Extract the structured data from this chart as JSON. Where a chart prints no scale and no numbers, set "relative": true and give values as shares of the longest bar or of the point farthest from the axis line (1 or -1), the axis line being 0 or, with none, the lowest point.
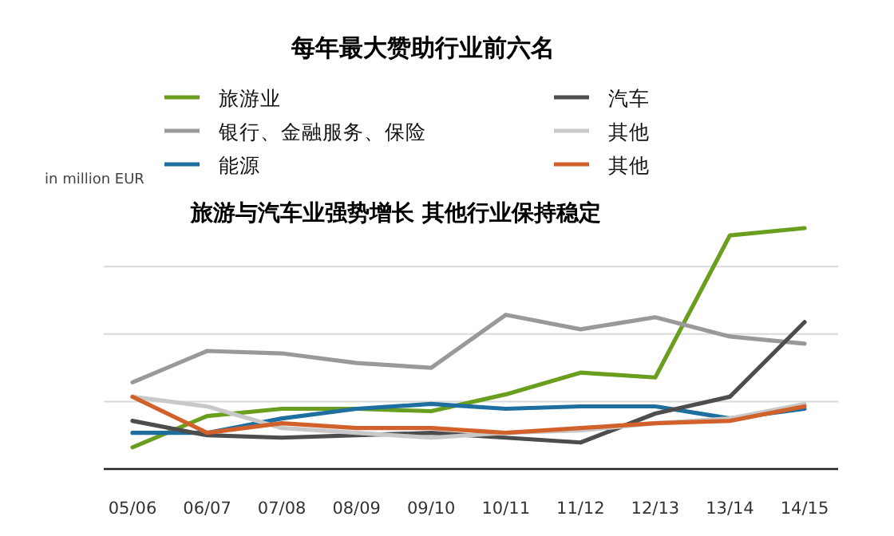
{
  "chart_data": {
    "type": "line",
    "title": "每年最大赞助行业前六名",
    "subtitle": "旅游与汽车业强势增长 其他行业保持稳定",
    "ylabel": "in million EUR",
    "relative": true,
    "grid": true,
    "legend": "top",
    "categories": [
      "05/06",
      "06/07",
      "07/08",
      "08/09",
      "09/10",
      "10/11",
      "11/12",
      "12/13",
      "13/14",
      "14/15"
    ],
    "series": [
      {
        "name": "旅游业",
        "color": "#6a9e1f",
        "values": [
          0.09,
          0.22,
          0.25,
          0.25,
          0.24,
          0.31,
          0.4,
          0.38,
          0.97,
          1
        ]
      },
      {
        "name": "银行、金融服务、保险",
        "color": "#999999",
        "values": [
          0.36,
          0.49,
          0.48,
          0.44,
          0.42,
          0.64,
          0.58,
          0.63,
          0.55,
          0.52
        ]
      },
      {
        "name": "能源",
        "color": "#1f6ea0",
        "values": [
          0.15,
          0.15,
          0.21,
          0.25,
          0.27,
          0.25,
          0.26,
          0.26,
          0.21,
          0.25
        ]
      },
      {
        "name": "汽车",
        "color": "#4d4d4d",
        "values": [
          0.2,
          0.14,
          0.13,
          0.14,
          0.15,
          0.13,
          0.11,
          0.23,
          0.3,
          0.61
        ]
      },
      {
        "name": "其他",
        "color": "#c8c8c8",
        "values": [
          0.3,
          0.26,
          0.17,
          0.15,
          0.13,
          0.15,
          0.16,
          0.19,
          0.21,
          0.27
        ]
      },
      {
        "name": "其他",
        "color": "#d2602a",
        "values": [
          0.3,
          0.15,
          0.19,
          0.17,
          0.17,
          0.15,
          0.17,
          0.19,
          0.2,
          0.26
        ]
      }
    ]
  }
}
